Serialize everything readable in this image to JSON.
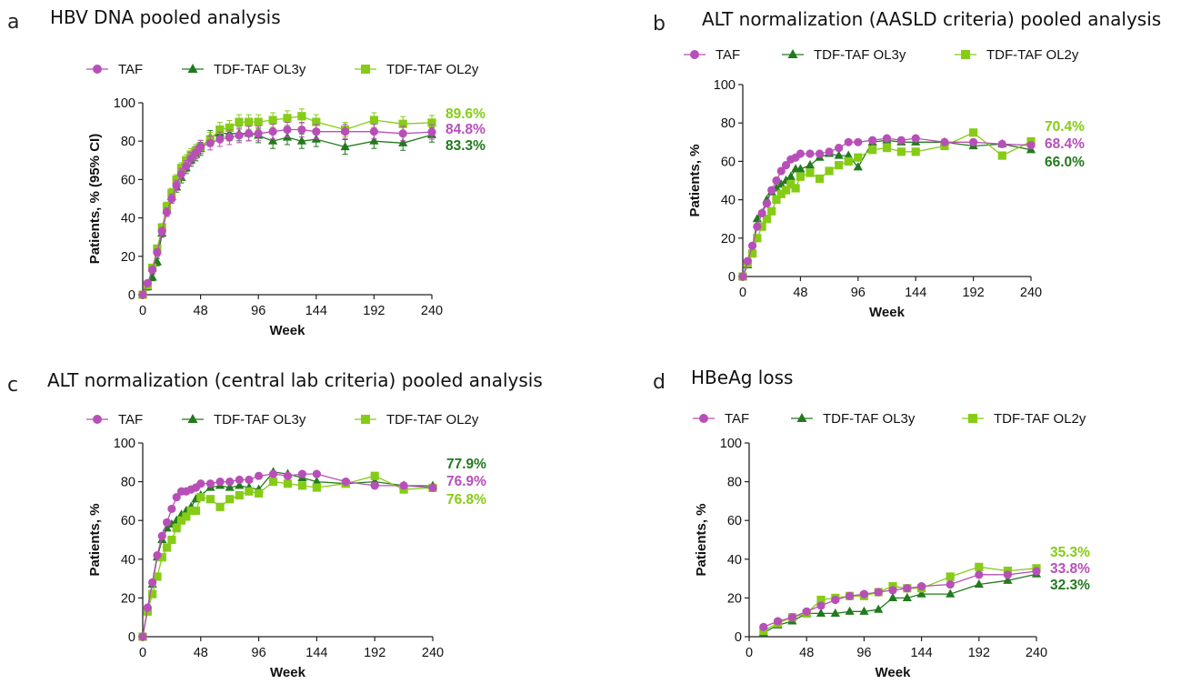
{
  "colors": {
    "TAF": "#b84fb8",
    "OL3y": "#237a1e",
    "OL2y": "#86cc16"
  },
  "chart_data": [
    {
      "type": "line",
      "panel": "a",
      "title": "HBV DNA pooled analysis",
      "xlabel": "Week",
      "ylabel": "Patients, % (95% CI)",
      "xticks": [
        0,
        48,
        96,
        144,
        192,
        240
      ],
      "yticks": [
        0,
        20,
        40,
        60,
        80,
        100
      ],
      "xlim": [
        0,
        240
      ],
      "ylim": [
        0,
        100
      ],
      "error_bars": true,
      "legend": [
        "TAF",
        "TDF-TAF OL3y",
        "TDF-TAF OL2y"
      ],
      "series": [
        {
          "name": "TAF",
          "color_key": "TAF",
          "marker": "circle",
          "end_label": "84.8%",
          "x": [
            0,
            4,
            8,
            12,
            16,
            20,
            24,
            28,
            32,
            36,
            40,
            44,
            48,
            56,
            64,
            72,
            80,
            88,
            96,
            108,
            120,
            132,
            144,
            168,
            192,
            216,
            240
          ],
          "y": [
            0,
            6,
            13,
            22,
            33,
            43,
            50,
            57,
            63,
            67,
            71,
            74,
            77,
            79,
            81,
            82,
            83,
            84,
            84,
            85,
            86,
            86,
            85,
            85,
            85,
            84,
            84.8
          ]
        },
        {
          "name": "TDF-TAF OL3y",
          "color_key": "OL3y",
          "marker": "triangle",
          "end_label": "83.3%",
          "x": [
            0,
            4,
            8,
            12,
            16,
            20,
            24,
            28,
            32,
            36,
            40,
            44,
            48,
            56,
            64,
            72,
            80,
            88,
            96,
            108,
            120,
            132,
            144,
            168,
            192,
            216,
            240
          ],
          "y": [
            0,
            4,
            9,
            17,
            32,
            44,
            51,
            56,
            61,
            66,
            70,
            73,
            76,
            82,
            84,
            84,
            84,
            84,
            83,
            80,
            82,
            80,
            81,
            77,
            80,
            79,
            83.3
          ]
        },
        {
          "name": "TDF-TAF OL2y",
          "color_key": "OL2y",
          "marker": "square",
          "end_label": "89.6%",
          "x": [
            0,
            4,
            8,
            12,
            16,
            20,
            24,
            28,
            32,
            36,
            40,
            44,
            48,
            56,
            64,
            72,
            80,
            88,
            96,
            108,
            120,
            132,
            144,
            168,
            192,
            216,
            240
          ],
          "y": [
            0,
            5,
            14,
            24,
            35,
            46,
            53,
            60,
            66,
            70,
            73,
            75,
            77,
            81,
            86,
            87,
            90,
            90,
            90,
            91,
            92,
            93,
            90,
            86,
            91,
            89,
            89.6
          ]
        }
      ]
    },
    {
      "type": "line",
      "panel": "b",
      "title": "ALT normalization (AASLD criteria) pooled analysis",
      "xlabel": "Week",
      "ylabel": "Patients, %",
      "xticks": [
        0,
        48,
        96,
        144,
        192,
        240
      ],
      "yticks": [
        0,
        20,
        40,
        60,
        80,
        100
      ],
      "xlim": [
        0,
        240
      ],
      "ylim": [
        0,
        100
      ],
      "error_bars": false,
      "legend": [
        "TAF",
        "TDF-TAF OL3y",
        "TDF-TAF OL2y"
      ],
      "series": [
        {
          "name": "TAF",
          "color_key": "TAF",
          "marker": "circle",
          "end_label": "68.4%",
          "x": [
            0,
            4,
            8,
            12,
            16,
            20,
            24,
            28,
            32,
            36,
            40,
            44,
            48,
            56,
            64,
            72,
            80,
            88,
            96,
            108,
            120,
            132,
            144,
            168,
            192,
            216,
            240
          ],
          "y": [
            0,
            8,
            16,
            26,
            33,
            38,
            45,
            50,
            55,
            58,
            61,
            62,
            64,
            64,
            64,
            65,
            67,
            70,
            70,
            71,
            72,
            71,
            72,
            70,
            70,
            69,
            68.4
          ]
        },
        {
          "name": "TDF-TAF OL3y",
          "color_key": "OL3y",
          "marker": "triangle",
          "end_label": "66.0%",
          "x": [
            0,
            4,
            8,
            12,
            16,
            20,
            24,
            28,
            32,
            36,
            40,
            44,
            48,
            56,
            64,
            72,
            80,
            88,
            96,
            108,
            120,
            132,
            144,
            168,
            192,
            216,
            240
          ],
          "y": [
            0,
            6,
            14,
            30,
            33,
            40,
            44,
            46,
            48,
            50,
            52,
            56,
            56,
            58,
            62,
            64,
            63,
            63,
            57,
            70,
            71,
            70,
            70,
            70,
            68,
            69,
            66.0
          ]
        },
        {
          "name": "TDF-TAF OL2y",
          "color_key": "OL2y",
          "marker": "square",
          "end_label": "70.4%",
          "x": [
            0,
            4,
            8,
            12,
            16,
            20,
            24,
            28,
            32,
            36,
            40,
            44,
            48,
            56,
            64,
            72,
            80,
            88,
            96,
            108,
            120,
            132,
            144,
            168,
            192,
            216,
            240
          ],
          "y": [
            0,
            7,
            12,
            20,
            26,
            30,
            34,
            40,
            43,
            45,
            48,
            46,
            52,
            54,
            51,
            55,
            58,
            60,
            62,
            66,
            67,
            65,
            65,
            68,
            75,
            63,
            70.4
          ]
        }
      ]
    },
    {
      "type": "line",
      "panel": "c",
      "title": "ALT normalization (central lab criteria) pooled analysis",
      "xlabel": "Week",
      "ylabel": "Patients, %",
      "xticks": [
        0,
        48,
        96,
        144,
        192,
        240
      ],
      "yticks": [
        0,
        20,
        40,
        60,
        80,
        100
      ],
      "xlim": [
        0,
        240
      ],
      "ylim": [
        0,
        100
      ],
      "error_bars": false,
      "legend": [
        "TAF",
        "TDF-TAF OL3y",
        "TDF-TAF OL2y"
      ],
      "series": [
        {
          "name": "TAF",
          "color_key": "TAF",
          "marker": "circle",
          "end_label": "76.9%",
          "x": [
            0,
            4,
            8,
            12,
            16,
            20,
            24,
            28,
            32,
            36,
            40,
            44,
            48,
            56,
            64,
            72,
            80,
            88,
            96,
            108,
            120,
            132,
            144,
            168,
            192,
            216,
            240
          ],
          "y": [
            0,
            15,
            28,
            42,
            52,
            59,
            66,
            72,
            75,
            75,
            76,
            77,
            79,
            79,
            80,
            80,
            81,
            81,
            83,
            84,
            83,
            84,
            84,
            80,
            78,
            78,
            76.9
          ]
        },
        {
          "name": "TDF-TAF OL3y",
          "color_key": "OL3y",
          "marker": "triangle",
          "end_label": "77.9%",
          "x": [
            0,
            4,
            8,
            12,
            16,
            20,
            24,
            28,
            32,
            36,
            40,
            44,
            48,
            56,
            64,
            72,
            80,
            88,
            96,
            108,
            120,
            132,
            144,
            168,
            192,
            216,
            240
          ],
          "y": [
            0,
            14,
            27,
            41,
            50,
            56,
            58,
            60,
            63,
            65,
            67,
            71,
            73,
            77,
            78,
            77,
            78,
            77,
            76,
            85,
            84,
            82,
            80,
            79,
            80,
            78,
            77.9
          ]
        },
        {
          "name": "TDF-TAF OL2y",
          "color_key": "OL2y",
          "marker": "square",
          "end_label": "76.8%",
          "x": [
            0,
            4,
            8,
            12,
            16,
            20,
            24,
            28,
            32,
            36,
            40,
            44,
            48,
            56,
            64,
            72,
            80,
            88,
            96,
            108,
            120,
            132,
            144,
            168,
            192,
            216,
            240
          ],
          "y": [
            0,
            13,
            22,
            31,
            41,
            46,
            50,
            56,
            60,
            62,
            65,
            65,
            72,
            71,
            67,
            71,
            73,
            75,
            74,
            80,
            79,
            78,
            77,
            79,
            83,
            76,
            76.8
          ]
        }
      ]
    },
    {
      "type": "line",
      "panel": "d",
      "title": "HBeAg loss",
      "xlabel": "Week",
      "ylabel": "Patients, %",
      "xticks": [
        0,
        48,
        96,
        144,
        192,
        240
      ],
      "yticks": [
        0,
        20,
        40,
        60,
        80,
        100
      ],
      "xlim": [
        0,
        240
      ],
      "ylim": [
        0,
        100
      ],
      "error_bars": false,
      "legend": [
        "TAF",
        "TDF-TAF OL3y",
        "TDF-TAF OL2y"
      ],
      "series": [
        {
          "name": "TAF",
          "color_key": "TAF",
          "marker": "circle",
          "end_label": "33.8%",
          "x": [
            12,
            24,
            36,
            48,
            60,
            72,
            84,
            96,
            108,
            120,
            132,
            144,
            168,
            192,
            216,
            240
          ],
          "y": [
            5,
            8,
            10,
            13,
            16,
            19,
            21,
            22,
            23,
            24,
            25,
            26,
            27,
            32,
            32,
            33.8
          ]
        },
        {
          "name": "TDF-TAF OL3y",
          "color_key": "OL3y",
          "marker": "triangle",
          "end_label": "32.3%",
          "x": [
            12,
            24,
            36,
            48,
            60,
            72,
            84,
            96,
            108,
            120,
            132,
            144,
            168,
            192,
            216,
            240
          ],
          "y": [
            2,
            6,
            8,
            12,
            12,
            12,
            13,
            13,
            14,
            20,
            20,
            22,
            22,
            27,
            29,
            32.3
          ]
        },
        {
          "name": "TDF-TAF OL2y",
          "color_key": "OL2y",
          "marker": "square",
          "end_label": "35.3%",
          "x": [
            12,
            24,
            36,
            48,
            60,
            72,
            84,
            96,
            108,
            120,
            132,
            144,
            168,
            192,
            216,
            240
          ],
          "y": [
            3,
            7,
            10,
            12,
            19,
            20,
            21,
            21,
            23,
            26,
            25,
            25,
            31,
            36,
            34,
            35.3
          ]
        }
      ]
    }
  ]
}
